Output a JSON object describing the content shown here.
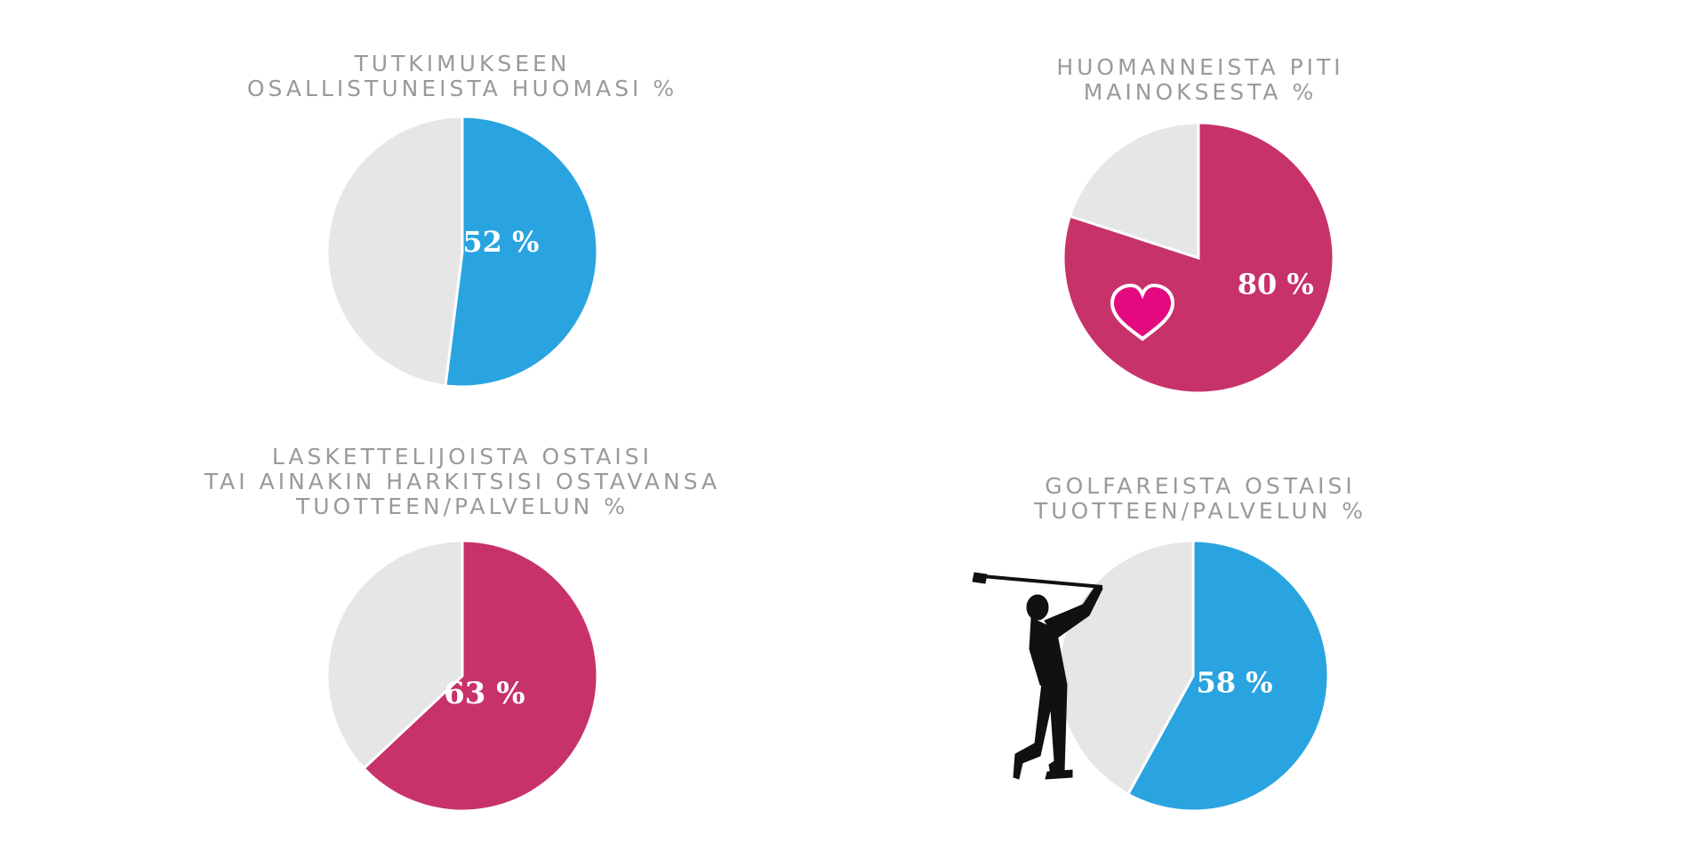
{
  "chart_data": [
    {
      "type": "pie",
      "title_lines": [
        "TUTKIMUKSEEN",
        "OSALLISTUNEISTA HUOMASI %"
      ],
      "slices": [
        {
          "label": "52 %",
          "value": 52,
          "color": "#29a4e0"
        },
        {
          "value": 48,
          "color": "#e6e6e6"
        }
      ],
      "icon": ""
    },
    {
      "type": "pie",
      "title_lines": [
        "HUOMANNEISTA PITI",
        "MAINOKSESTA %"
      ],
      "slices": [
        {
          "label": "80 %",
          "value": 80,
          "color": "#c7326a"
        },
        {
          "value": 20,
          "color": "#e6e6e6"
        }
      ],
      "icon": "heart-icon"
    },
    {
      "type": "pie",
      "title_lines": [
        "LASKETTELIJOISTA OSTAISI",
        "TAI AINAKIN HARKITSISI OSTAVANSA",
        "TUOTTEEN/PALVELUN %"
      ],
      "slices": [
        {
          "label": "63 %",
          "value": 63,
          "color": "#c7326a"
        },
        {
          "value": 37,
          "color": "#e6e6e6"
        }
      ],
      "icon": ""
    },
    {
      "type": "pie",
      "title_lines": [
        "GOLFAREISTA OSTAISI",
        "TUOTTEEN/PALVELUN %"
      ],
      "slices": [
        {
          "label": "58 %",
          "value": 58,
          "color": "#29a4e0"
        },
        {
          "value": 42,
          "color": "#e6e6e6"
        }
      ],
      "icon": "golfer-icon"
    }
  ]
}
